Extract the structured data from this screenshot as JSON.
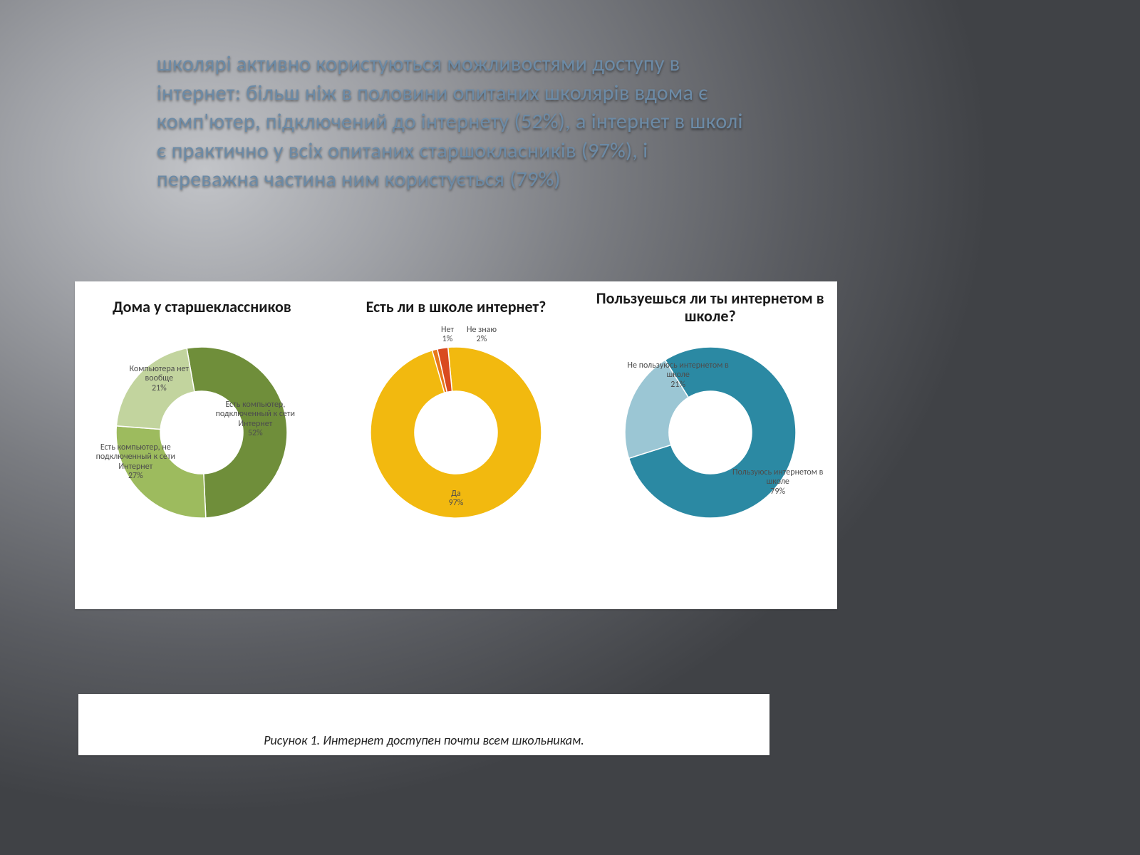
{
  "background": {
    "gradient_center": "#c2c4c8",
    "gradient_edge": "#404246"
  },
  "title": {
    "text": "школярі активно користуються можливостями доступу в інтернет: більш ніж в половини опитаних школярів вдома є комп'ютер, підключений до інтернету (52%), а інтернет в школі є практично у всіх опитаних старшокласників (97%), і переважна частина ним користується (79%)",
    "font_size": 30,
    "color": "#6b8aa6"
  },
  "charts": [
    {
      "type": "donut",
      "title": "Дома у старшеклассников",
      "title_fontsize": 22,
      "inner_radius": 58,
      "outer_radius": 120,
      "label_fontsize": 12,
      "label_color": "#4d4d4d",
      "slices": [
        {
          "label": "Есть компьютер, подключенный к сети Интернет",
          "value": 52,
          "percent_text": "52%",
          "color": "#6f8e3a"
        },
        {
          "label": "Есть компьютер, не подключенный к сети Интернет",
          "value": 27,
          "percent_text": "27%",
          "color": "#9dbb5e"
        },
        {
          "label": "Компьютера нет вообще",
          "value": 21,
          "percent_text": "21%",
          "color": "#c2d49e"
        }
      ]
    },
    {
      "type": "donut",
      "title": "Есть ли в школе интернет?",
      "title_fontsize": 22,
      "inner_radius": 58,
      "outer_radius": 120,
      "label_fontsize": 12,
      "label_color": "#4d4d4d",
      "slices": [
        {
          "label": "Да",
          "value": 97,
          "percent_text": "97%",
          "color": "#f2b90f"
        },
        {
          "label": "Нет",
          "value": 1,
          "percent_text": "1%",
          "color": "#e77819",
          "outside": true
        },
        {
          "label": "Не знаю",
          "value": 2,
          "percent_text": "2%",
          "color": "#d94a1f",
          "outside": true
        }
      ]
    },
    {
      "type": "donut",
      "title": "Пользуешься ли ты интернетом в школе?",
      "title_fontsize": 22,
      "inner_radius": 58,
      "outer_radius": 120,
      "label_fontsize": 12,
      "label_color": "#4d4d4d",
      "slices": [
        {
          "label": "Пользуюсь интернетом в школе",
          "value": 79,
          "percent_text": "79%",
          "color": "#2b89a3"
        },
        {
          "label": "Не пользуюсь интернетом в школе",
          "value": 21,
          "percent_text": "21%",
          "color": "#9bc6d4"
        }
      ]
    }
  ],
  "caption": {
    "text": "Рисунок 1.  Интернет доступен почти всем школьникам.",
    "font_size": 18,
    "font_style": "italic",
    "color": "#222222",
    "background": "#ffffff"
  },
  "panel": {
    "background": "#ffffff"
  }
}
